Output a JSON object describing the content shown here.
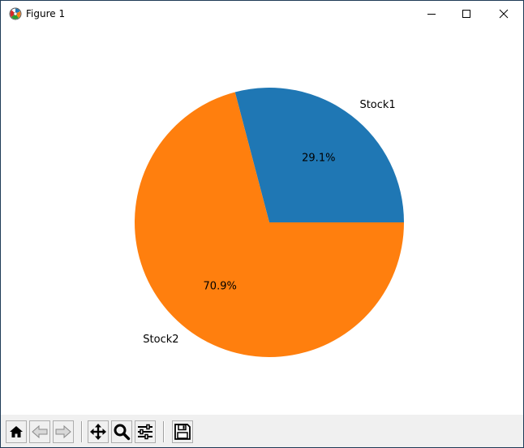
{
  "window": {
    "title": "Figure 1",
    "controls": {
      "minimize_icon": "minimize-icon",
      "maximize_icon": "maximize-icon",
      "close_icon": "close-icon"
    }
  },
  "toolbar": {
    "buttons": [
      {
        "name": "home-button",
        "icon": "home-icon"
      },
      {
        "name": "back-button",
        "icon": "back-arrow-icon"
      },
      {
        "name": "forward-button",
        "icon": "forward-arrow-icon"
      },
      {
        "name": "pan-button",
        "icon": "move-icon"
      },
      {
        "name": "zoom-button",
        "icon": "zoom-icon"
      },
      {
        "name": "configure-subplots-button",
        "icon": "sliders-icon"
      },
      {
        "name": "save-button",
        "icon": "save-icon"
      }
    ]
  },
  "chart_data": {
    "type": "pie",
    "categories": [
      "Stock1",
      "Stock2"
    ],
    "values": [
      29.1,
      70.9
    ],
    "percent_labels": [
      "29.1%",
      "70.9%"
    ],
    "colors": [
      "#1f77b4",
      "#ff7f0e"
    ]
  }
}
